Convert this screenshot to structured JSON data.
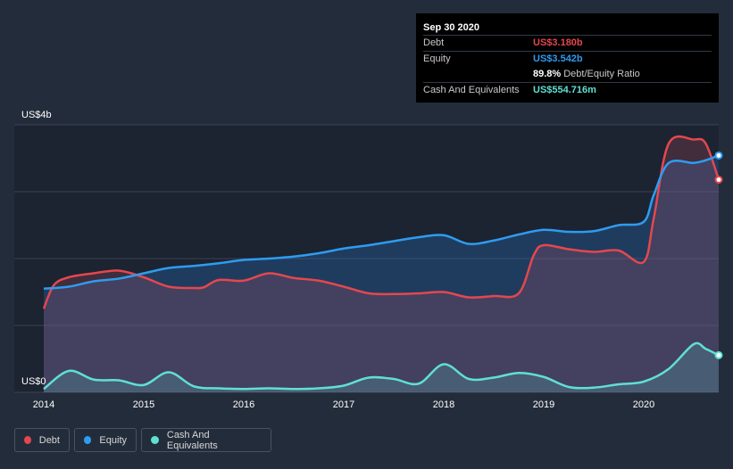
{
  "tooltip": {
    "date": "Sep 30 2020",
    "rows": [
      {
        "label": "Debt",
        "value": "US$3.180b",
        "color": "#e4474f"
      },
      {
        "label": "Equity",
        "value": "US$3.542b",
        "color": "#2e9cf0"
      },
      {
        "label": "",
        "value": "89.8%",
        "suffix": "Debt/Equity Ratio",
        "color": "#ffffff"
      },
      {
        "label": "Cash And Equivalents",
        "value": "US$554.716m",
        "color": "#5fe0d2"
      }
    ]
  },
  "legend": [
    {
      "label": "Debt",
      "color": "#e4474f"
    },
    {
      "label": "Equity",
      "color": "#2e9cf0"
    },
    {
      "label": "Cash And Equivalents",
      "color": "#5fe0d2"
    }
  ],
  "chart_data": {
    "type": "area",
    "title": "",
    "xlabel": "",
    "ylabel": "",
    "y_top_label": "US$4b",
    "y_bottom_label": "US$0",
    "ylim": [
      0,
      4
    ],
    "xlim": [
      2014.0,
      2020.75
    ],
    "xticks": [
      2014,
      2015,
      2016,
      2017,
      2018,
      2019,
      2020
    ],
    "grid": true,
    "legend_position": "bottom-left",
    "series": [
      {
        "name": "Debt",
        "color": "#e4474f",
        "points": [
          [
            2014.0,
            1.25
          ],
          [
            2014.1,
            1.6
          ],
          [
            2014.25,
            1.72
          ],
          [
            2014.5,
            1.78
          ],
          [
            2014.75,
            1.82
          ],
          [
            2015.0,
            1.72
          ],
          [
            2015.25,
            1.58
          ],
          [
            2015.5,
            1.56
          ],
          [
            2015.6,
            1.57
          ],
          [
            2015.75,
            1.68
          ],
          [
            2016.0,
            1.67
          ],
          [
            2016.25,
            1.78
          ],
          [
            2016.5,
            1.71
          ],
          [
            2016.75,
            1.67
          ],
          [
            2017.0,
            1.58
          ],
          [
            2017.25,
            1.48
          ],
          [
            2017.5,
            1.47
          ],
          [
            2017.75,
            1.48
          ],
          [
            2018.0,
            1.5
          ],
          [
            2018.25,
            1.42
          ],
          [
            2018.5,
            1.44
          ],
          [
            2018.75,
            1.48
          ],
          [
            2018.9,
            2.05
          ],
          [
            2019.0,
            2.2
          ],
          [
            2019.25,
            2.14
          ],
          [
            2019.5,
            2.1
          ],
          [
            2019.75,
            2.12
          ],
          [
            2020.0,
            1.95
          ],
          [
            2020.1,
            2.6
          ],
          [
            2020.25,
            3.72
          ],
          [
            2020.5,
            3.78
          ],
          [
            2020.62,
            3.72
          ],
          [
            2020.75,
            3.18
          ]
        ]
      },
      {
        "name": "Equity",
        "color": "#2e9cf0",
        "points": [
          [
            2014.0,
            1.55
          ],
          [
            2014.25,
            1.58
          ],
          [
            2014.5,
            1.66
          ],
          [
            2014.75,
            1.7
          ],
          [
            2015.0,
            1.78
          ],
          [
            2015.25,
            1.86
          ],
          [
            2015.5,
            1.89
          ],
          [
            2015.75,
            1.93
          ],
          [
            2016.0,
            1.98
          ],
          [
            2016.25,
            2.0
          ],
          [
            2016.5,
            2.03
          ],
          [
            2016.75,
            2.08
          ],
          [
            2017.0,
            2.15
          ],
          [
            2017.25,
            2.2
          ],
          [
            2017.5,
            2.26
          ],
          [
            2017.75,
            2.32
          ],
          [
            2018.0,
            2.35
          ],
          [
            2018.25,
            2.22
          ],
          [
            2018.5,
            2.27
          ],
          [
            2018.75,
            2.36
          ],
          [
            2019.0,
            2.43
          ],
          [
            2019.25,
            2.4
          ],
          [
            2019.5,
            2.41
          ],
          [
            2019.75,
            2.5
          ],
          [
            2020.0,
            2.55
          ],
          [
            2020.1,
            2.95
          ],
          [
            2020.25,
            3.43
          ],
          [
            2020.5,
            3.43
          ],
          [
            2020.62,
            3.47
          ],
          [
            2020.75,
            3.542
          ]
        ]
      },
      {
        "name": "Cash And Equivalents",
        "color": "#5fe0d2",
        "points": [
          [
            2014.0,
            0.05
          ],
          [
            2014.25,
            0.32
          ],
          [
            2014.5,
            0.19
          ],
          [
            2014.75,
            0.18
          ],
          [
            2015.0,
            0.11
          ],
          [
            2015.25,
            0.3
          ],
          [
            2015.5,
            0.09
          ],
          [
            2015.75,
            0.06
          ],
          [
            2016.0,
            0.05
          ],
          [
            2016.25,
            0.06
          ],
          [
            2016.5,
            0.05
          ],
          [
            2016.75,
            0.06
          ],
          [
            2017.0,
            0.1
          ],
          [
            2017.25,
            0.22
          ],
          [
            2017.5,
            0.2
          ],
          [
            2017.75,
            0.13
          ],
          [
            2018.0,
            0.42
          ],
          [
            2018.25,
            0.2
          ],
          [
            2018.5,
            0.22
          ],
          [
            2018.75,
            0.29
          ],
          [
            2019.0,
            0.23
          ],
          [
            2019.25,
            0.08
          ],
          [
            2019.5,
            0.07
          ],
          [
            2019.75,
            0.12
          ],
          [
            2020.0,
            0.16
          ],
          [
            2020.25,
            0.35
          ],
          [
            2020.5,
            0.72
          ],
          [
            2020.62,
            0.65
          ],
          [
            2020.75,
            0.555
          ]
        ]
      }
    ]
  }
}
